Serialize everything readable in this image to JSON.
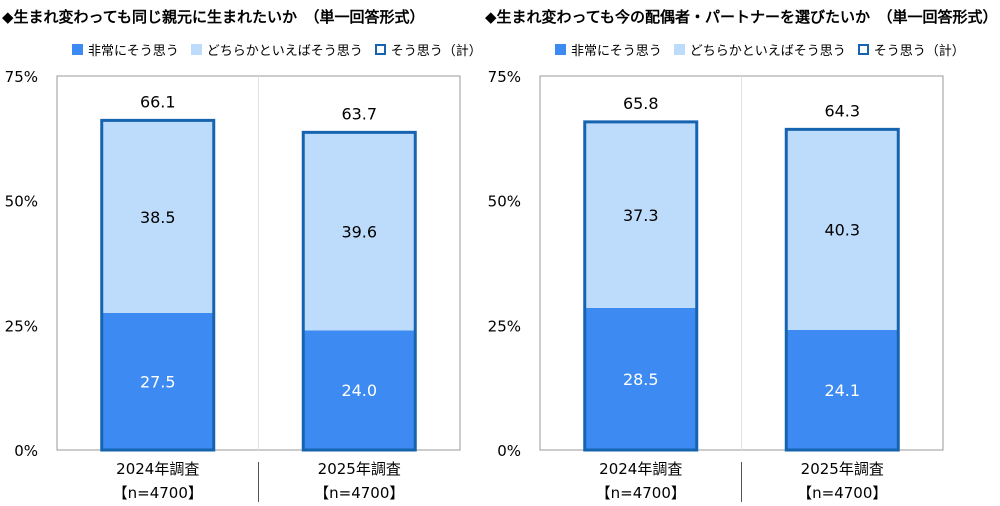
{
  "chart_data": [
    {
      "type": "bar",
      "stacked": true,
      "title": "◆生まれ変わっても同じ親元に生まれたいか　（単一回答形式）",
      "categories": [
        "2024年調査",
        "2025年調査"
      ],
      "category_notes": [
        "【n=4700】",
        "【n=4700】"
      ],
      "series": [
        {
          "name": "非常にそう思う",
          "values": [
            27.5,
            24.0
          ],
          "labels": [
            "27.5",
            "24.0"
          ]
        },
        {
          "name": "どちらかといえばそう思う",
          "values": [
            38.5,
            39.6
          ],
          "labels": [
            "38.5",
            "39.6"
          ]
        }
      ],
      "totals": {
        "name": "そう思う（計）",
        "values": [
          66.1,
          63.7
        ],
        "labels": [
          "66.1",
          "63.7"
        ]
      },
      "ylim": [
        0,
        75
      ],
      "yticks": [
        "0%",
        "25%",
        "50%",
        "75%"
      ],
      "grid": false,
      "legend": "top"
    },
    {
      "type": "bar",
      "stacked": true,
      "title": "◆生まれ変わっても今の配偶者・パートナーを選びたいか　（単一回答形式）",
      "categories": [
        "2024年調査",
        "2025年調査"
      ],
      "category_notes": [
        "【n=4700】",
        "【n=4700】"
      ],
      "series": [
        {
          "name": "非常にそう思う",
          "values": [
            28.5,
            24.1
          ],
          "labels": [
            "28.5",
            "24.1"
          ]
        },
        {
          "name": "どちらかといえばそう思う",
          "values": [
            37.3,
            40.3
          ],
          "labels": [
            "37.3",
            "40.3"
          ]
        }
      ],
      "totals": {
        "name": "そう思う（計）",
        "values": [
          65.8,
          64.3
        ],
        "labels": [
          "65.8",
          "64.3"
        ]
      },
      "ylim": [
        0,
        75
      ],
      "yticks": [
        "0%",
        "25%",
        "50%",
        "75%"
      ],
      "grid": false,
      "legend": "top"
    }
  ],
  "colors": {
    "dark": "#3d8bf2",
    "light": "#bddcfb",
    "outline": "#1664b0",
    "axis": "#999999"
  }
}
